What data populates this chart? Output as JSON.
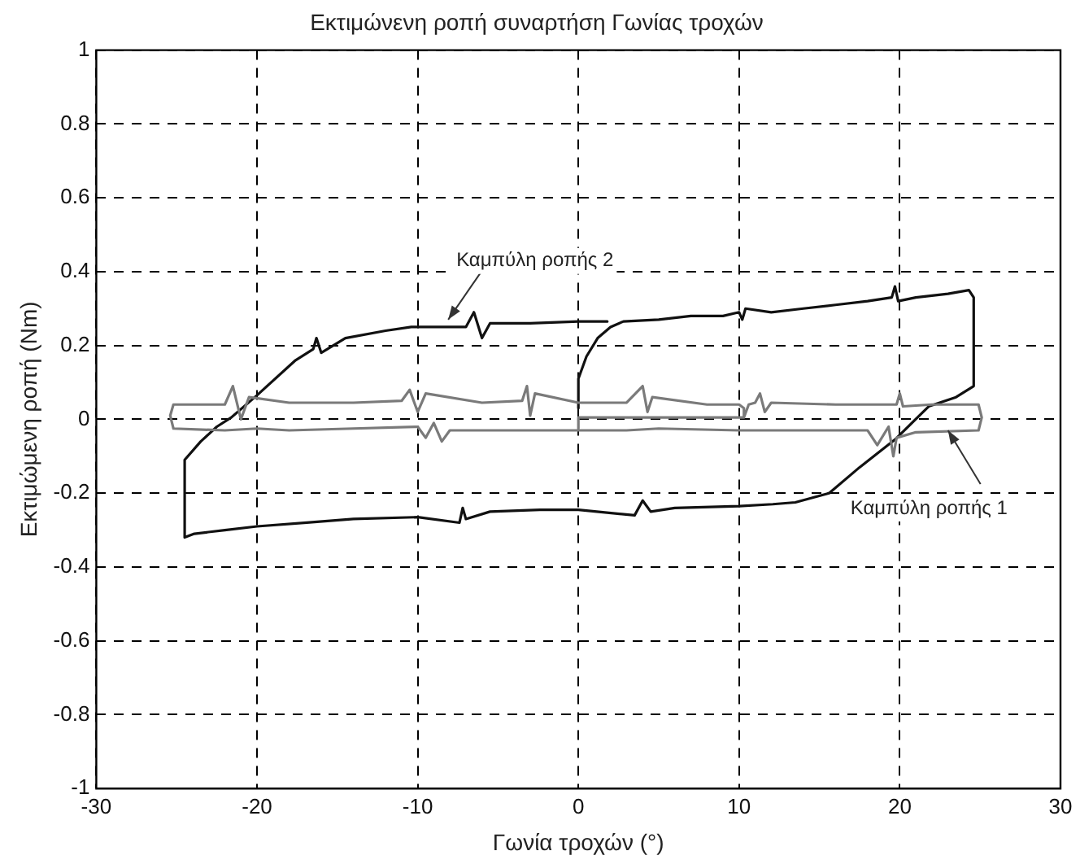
{
  "chart_data": {
    "type": "line",
    "title": "Εκτιμώνενη ροπή συναρτήση Γωνίας τροχών",
    "xlabel": "Γωνία τροχών (°)",
    "ylabel": "Εκτιμώμενη ροπή (Nm)",
    "xlim": [
      -30,
      30
    ],
    "xticks": [
      -30,
      -20,
      -10,
      0,
      10,
      20,
      30
    ],
    "ylim": [
      -1,
      1
    ],
    "yticks": [
      -1,
      -0.8,
      -0.6,
      -0.4,
      -0.2,
      0,
      0.2,
      0.4,
      0.6,
      0.8,
      1
    ],
    "grid": true,
    "annotations": [
      {
        "text": "Καμπύλη ροπής 2",
        "x": -8.1,
        "y": 0.27
      },
      {
        "text": "Καμπύλη ροπής 1",
        "x": 23,
        "y": -0.03
      }
    ],
    "series": [
      {
        "color": "#7a7a7a",
        "x": [
          0,
          0,
          5,
          10.3,
          10.6,
          11,
          11.3,
          11.6,
          12,
          16,
          19.8,
          20,
          20.2,
          22,
          24.9,
          25.1,
          24.9,
          21,
          19.8,
          19.6,
          19.3,
          18.6,
          18,
          14,
          10,
          5,
          3,
          0,
          -5,
          -8,
          -8.5,
          -9,
          -9.5,
          -10,
          -14,
          -18,
          -20,
          -22,
          -25.2,
          -25.4,
          -25.2,
          -22,
          -21.5,
          -21,
          -20.5,
          -18,
          -14,
          -11,
          -10.5,
          -10,
          -9.5,
          -6,
          -3.5,
          -3.2,
          -3,
          -2.7,
          0,
          3,
          4,
          4.3,
          4.6,
          8,
          10,
          10.3,
          10.3
        ],
        "values": [
          -0.025,
          0.005,
          0.005,
          0.005,
          0.04,
          0.045,
          0.07,
          0.02,
          0.045,
          0.04,
          0.04,
          0.07,
          0.035,
          0.04,
          0.04,
          0.005,
          -0.03,
          -0.035,
          -0.05,
          -0.1,
          -0.02,
          -0.07,
          -0.03,
          -0.03,
          -0.03,
          -0.025,
          -0.03,
          -0.03,
          -0.03,
          -0.03,
          -0.06,
          -0.01,
          -0.05,
          -0.02,
          -0.025,
          -0.03,
          -0.025,
          -0.03,
          -0.025,
          0.01,
          0.04,
          0.04,
          0.09,
          0,
          0.06,
          0.045,
          0.045,
          0.05,
          0.08,
          0.02,
          0.07,
          0.045,
          0.05,
          0.09,
          0.01,
          0.07,
          0.045,
          0.045,
          0.09,
          0.02,
          0.06,
          0.04,
          0.04,
          0.03,
          0.005
        ]
      },
      {
        "color": "#111111",
        "x": [
          0,
          0,
          0.5,
          1.2,
          2,
          2.8,
          5,
          7,
          9,
          10,
          10.2,
          10.4,
          12,
          14,
          16,
          18,
          19.5,
          19.7,
          19.9,
          21,
          23,
          24.3,
          24.6,
          24.6,
          23.5,
          21.8,
          19.7,
          17.5,
          15.6,
          13.5,
          12.1,
          10,
          6,
          4.5,
          4,
          3.5,
          0,
          -2.4,
          -5.5,
          -7,
          -7.2,
          -7.4,
          -10,
          -14,
          -16.9,
          -20,
          -22,
          -23.9,
          -24.5,
          -24.5,
          -23.5,
          -22.5,
          -21.6,
          -20,
          -17.6,
          -16.5,
          -16.3,
          -16,
          -14.5,
          -12,
          -10.4,
          -7,
          -6.5,
          -6,
          -5.5,
          -3,
          0,
          1.8
        ],
        "values": [
          0.03,
          0.11,
          0.17,
          0.22,
          0.25,
          0.265,
          0.27,
          0.28,
          0.28,
          0.29,
          0.27,
          0.3,
          0.29,
          0.3,
          0.31,
          0.32,
          0.33,
          0.36,
          0.32,
          0.33,
          0.34,
          0.35,
          0.33,
          0.09,
          0.06,
          0.035,
          -0.055,
          -0.13,
          -0.2,
          -0.225,
          -0.23,
          -0.235,
          -0.24,
          -0.25,
          -0.22,
          -0.26,
          -0.245,
          -0.245,
          -0.25,
          -0.27,
          -0.24,
          -0.28,
          -0.265,
          -0.27,
          -0.28,
          -0.29,
          -0.3,
          -0.31,
          -0.32,
          -0.11,
          -0.06,
          -0.02,
          0.005,
          0.065,
          0.16,
          0.19,
          0.22,
          0.18,
          0.22,
          0.24,
          0.25,
          0.25,
          0.29,
          0.22,
          0.26,
          0.26,
          0.265,
          0.265
        ]
      }
    ]
  }
}
